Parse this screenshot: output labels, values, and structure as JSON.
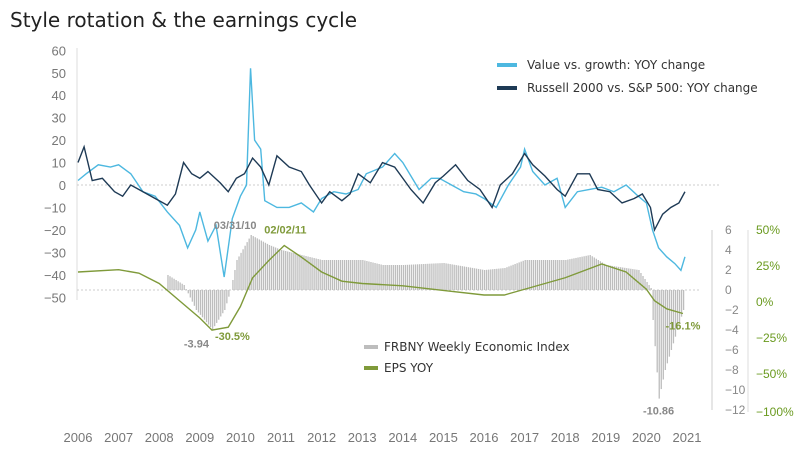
{
  "chart_data": {
    "type": "line",
    "title": "Style rotation & the earnings cycle",
    "x_range": [
      2006,
      2021
    ],
    "x_ticks": [
      "2006",
      "2007",
      "2008",
      "2009",
      "2010",
      "2011",
      "2012",
      "2013",
      "2014",
      "2015",
      "2016",
      "2017",
      "2018",
      "2019",
      "2020",
      "2021"
    ],
    "left_axis": {
      "range": [
        -50,
        60
      ],
      "ticks": [
        "60",
        "50",
        "40",
        "30",
        "20",
        "10",
        "0",
        "-10",
        "-20",
        "-30",
        "-40",
        "-50"
      ]
    },
    "wei_axis": {
      "range": [
        -12,
        6
      ],
      "ticks": [
        "6",
        "4",
        "2",
        "0",
        "-2",
        "-4",
        "-6",
        "-8",
        "-10",
        "-12"
      ]
    },
    "eps_axis": {
      "ticks": [
        "50%",
        "25%",
        "0%",
        "−25%",
        "−50%",
        "−100%"
      ]
    },
    "colors": {
      "value": "#4db8e0",
      "russell": "#1e3a55",
      "wei": "#bdbdbd",
      "eps": "#7f9a3a"
    },
    "series": [
      {
        "name": "Value vs. growth: YOY change",
        "axis": "left",
        "points": [
          [
            2006,
            2
          ],
          [
            2006.2,
            5
          ],
          [
            2006.5,
            9
          ],
          [
            2006.8,
            8
          ],
          [
            2007,
            9
          ],
          [
            2007.3,
            5
          ],
          [
            2007.6,
            -3
          ],
          [
            2007.9,
            -5
          ],
          [
            2008.2,
            -12
          ],
          [
            2008.5,
            -18
          ],
          [
            2008.7,
            -28
          ],
          [
            2008.9,
            -20
          ],
          [
            2009,
            -12
          ],
          [
            2009.2,
            -25
          ],
          [
            2009.4,
            -18
          ],
          [
            2009.6,
            -41
          ],
          [
            2009.8,
            -15
          ],
          [
            2010,
            -5
          ],
          [
            2010.15,
            0
          ],
          [
            2010.25,
            52
          ],
          [
            2010.35,
            20
          ],
          [
            2010.5,
            16
          ],
          [
            2010.6,
            -7
          ],
          [
            2010.9,
            -10
          ],
          [
            2011.2,
            -10
          ],
          [
            2011.5,
            -8
          ],
          [
            2011.8,
            -12
          ],
          [
            2012,
            -6
          ],
          [
            2012.3,
            -3
          ],
          [
            2012.6,
            -4
          ],
          [
            2012.9,
            -2
          ],
          [
            2013.1,
            5
          ],
          [
            2013.5,
            8
          ],
          [
            2013.8,
            14
          ],
          [
            2014,
            10
          ],
          [
            2014.2,
            4
          ],
          [
            2014.4,
            -2
          ],
          [
            2014.7,
            3
          ],
          [
            2014.9,
            3
          ],
          [
            2015.2,
            0
          ],
          [
            2015.5,
            -3
          ],
          [
            2015.8,
            -4
          ],
          [
            2016,
            -6
          ],
          [
            2016.3,
            -10
          ],
          [
            2016.6,
            0
          ],
          [
            2016.9,
            8
          ],
          [
            2017,
            16
          ],
          [
            2017.2,
            6
          ],
          [
            2017.5,
            0
          ],
          [
            2017.8,
            3
          ],
          [
            2018,
            -10
          ],
          [
            2018.3,
            -3
          ],
          [
            2018.6,
            -2
          ],
          [
            2018.9,
            -1
          ],
          [
            2019.2,
            -3
          ],
          [
            2019.5,
            0
          ],
          [
            2019.8,
            -5
          ],
          [
            2020,
            -8
          ],
          [
            2020.15,
            -20
          ],
          [
            2020.3,
            -28
          ],
          [
            2020.5,
            -32
          ],
          [
            2020.7,
            -35
          ],
          [
            2020.85,
            -38
          ],
          [
            2020.95,
            -32
          ]
        ]
      },
      {
        "name": "Russell 2000 vs. S&P 500: YOY change",
        "axis": "left",
        "points": [
          [
            2006,
            10
          ],
          [
            2006.15,
            17
          ],
          [
            2006.35,
            2
          ],
          [
            2006.6,
            3
          ],
          [
            2006.9,
            -3
          ],
          [
            2007.1,
            -5
          ],
          [
            2007.3,
            0
          ],
          [
            2007.6,
            -3
          ],
          [
            2007.9,
            -6
          ],
          [
            2008.2,
            -9
          ],
          [
            2008.4,
            -4
          ],
          [
            2008.6,
            10
          ],
          [
            2008.8,
            5
          ],
          [
            2009,
            3
          ],
          [
            2009.2,
            6
          ],
          [
            2009.5,
            1
          ],
          [
            2009.7,
            -3
          ],
          [
            2009.9,
            3
          ],
          [
            2010.1,
            5
          ],
          [
            2010.3,
            12
          ],
          [
            2010.5,
            8
          ],
          [
            2010.7,
            0
          ],
          [
            2010.9,
            13
          ],
          [
            2011.2,
            8
          ],
          [
            2011.5,
            6
          ],
          [
            2011.7,
            0
          ],
          [
            2012,
            -8
          ],
          [
            2012.2,
            -3
          ],
          [
            2012.5,
            -7
          ],
          [
            2012.7,
            -4
          ],
          [
            2012.9,
            5
          ],
          [
            2013.2,
            1
          ],
          [
            2013.5,
            10
          ],
          [
            2013.8,
            8
          ],
          [
            2014,
            3
          ],
          [
            2014.2,
            -2
          ],
          [
            2014.5,
            -8
          ],
          [
            2014.8,
            1
          ],
          [
            2015,
            4
          ],
          [
            2015.3,
            9
          ],
          [
            2015.6,
            2
          ],
          [
            2015.9,
            -2
          ],
          [
            2016.2,
            -10
          ],
          [
            2016.4,
            0
          ],
          [
            2016.7,
            5
          ],
          [
            2017,
            14
          ],
          [
            2017.2,
            9
          ],
          [
            2017.5,
            4
          ],
          [
            2017.8,
            -2
          ],
          [
            2018,
            -5
          ],
          [
            2018.3,
            5
          ],
          [
            2018.6,
            5
          ],
          [
            2018.8,
            -2
          ],
          [
            2019.1,
            -3
          ],
          [
            2019.4,
            -8
          ],
          [
            2019.7,
            -6
          ],
          [
            2019.9,
            -4
          ],
          [
            2020.1,
            -10
          ],
          [
            2020.2,
            -20
          ],
          [
            2020.4,
            -13
          ],
          [
            2020.6,
            -10
          ],
          [
            2020.8,
            -8
          ],
          [
            2020.95,
            -3
          ]
        ]
      },
      {
        "name": "FRBNY Weekly Economic Index",
        "axis": "wei",
        "type": "bar",
        "points": [
          [
            2008.2,
            1.5
          ],
          [
            2008.6,
            0.5
          ],
          [
            2008.9,
            -2
          ],
          [
            2009.3,
            -3.94
          ],
          [
            2009.6,
            -2
          ],
          [
            2009.75,
            0
          ],
          [
            2009.9,
            3
          ],
          [
            2010.25,
            5.5
          ],
          [
            2010.7,
            4.5
          ],
          [
            2011,
            4
          ],
          [
            2011.5,
            3.5
          ],
          [
            2012,
            3
          ],
          [
            2013,
            3
          ],
          [
            2013.5,
            2.5
          ],
          [
            2014,
            2.5
          ],
          [
            2015,
            2.7
          ],
          [
            2016,
            2
          ],
          [
            2016.5,
            2.2
          ],
          [
            2017,
            3
          ],
          [
            2018,
            3
          ],
          [
            2018.6,
            3.5
          ],
          [
            2019,
            2.5
          ],
          [
            2019.8,
            2
          ],
          [
            2020.1,
            0.2
          ],
          [
            2020.15,
            -3
          ],
          [
            2020.3,
            -10.86
          ],
          [
            2020.45,
            -8
          ],
          [
            2020.6,
            -6
          ],
          [
            2020.9,
            -2
          ]
        ]
      },
      {
        "name": "EPS YOY",
        "axis": "eps",
        "points": [
          [
            2006,
            20
          ],
          [
            2007,
            22
          ],
          [
            2007.5,
            19
          ],
          [
            2008,
            10
          ],
          [
            2008.5,
            -5
          ],
          [
            2009,
            -20
          ],
          [
            2009.3,
            -30.5
          ],
          [
            2009.7,
            -28
          ],
          [
            2010,
            -10
          ],
          [
            2010.3,
            15
          ],
          [
            2010.7,
            30
          ],
          [
            2011.08,
            43
          ],
          [
            2011.5,
            33
          ],
          [
            2012,
            20
          ],
          [
            2012.5,
            12
          ],
          [
            2013,
            10
          ],
          [
            2014,
            8
          ],
          [
            2015,
            4
          ],
          [
            2016,
            0
          ],
          [
            2016.5,
            0
          ],
          [
            2017,
            5
          ],
          [
            2018,
            15
          ],
          [
            2018.9,
            27
          ],
          [
            2019.5,
            20
          ],
          [
            2020,
            5
          ],
          [
            2020.2,
            -5
          ],
          [
            2020.5,
            -12
          ],
          [
            2020.9,
            -16.1
          ]
        ]
      }
    ],
    "annotations": [
      {
        "text": "03/31/10",
        "x": 2010.25,
        "y": 5.5,
        "axis": "wei",
        "color": "#888"
      },
      {
        "text": "02/02/11",
        "x": 2011.08,
        "y": 43,
        "axis": "eps",
        "color": "#7f9a3a"
      },
      {
        "text": "-3.94",
        "x": 2009.3,
        "y": -3.94,
        "axis": "wei",
        "color": "#888"
      },
      {
        "text": "-30.5%",
        "x": 2009.3,
        "y": -30.5,
        "axis": "eps",
        "color": "#7f9a3a"
      },
      {
        "text": "-10.86",
        "x": 2020.3,
        "y": -10.86,
        "axis": "wei",
        "color": "#888"
      },
      {
        "text": "-16.1%",
        "x": 2020.9,
        "y": -16.1,
        "axis": "eps",
        "color": "#7f9a3a"
      }
    ],
    "legend": {
      "top": [
        "Value vs. growth: YOY change",
        "Russell 2000 vs. S&P 500: YOY change"
      ],
      "bottom": [
        "FRBNY Weekly Economic Index",
        "EPS YOY"
      ]
    }
  }
}
